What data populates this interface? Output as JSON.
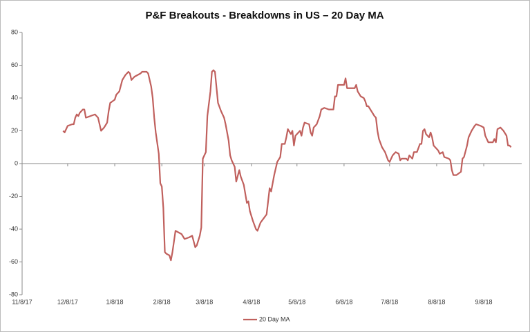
{
  "chart_data": {
    "type": "line",
    "title": "P&F Breakouts - Breakdowns in US – 20 Day MA",
    "x": [
      "2017-12-05",
      "2017-12-06",
      "2017-12-08",
      "2017-12-11",
      "2017-12-12",
      "2017-12-13",
      "2017-12-14",
      "2017-12-15",
      "2017-12-16",
      "2017-12-18",
      "2017-12-19",
      "2017-12-20",
      "2017-12-23",
      "2017-12-26",
      "2017-12-28",
      "2017-12-30",
      "2018-01-01",
      "2018-01-03",
      "2018-01-04",
      "2018-01-05",
      "2018-01-08",
      "2018-01-09",
      "2018-01-11",
      "2018-01-13",
      "2018-01-15",
      "2018-01-17",
      "2018-01-18",
      "2018-01-19",
      "2018-01-21",
      "2018-01-23",
      "2018-01-25",
      "2018-01-26",
      "2018-01-29",
      "2018-01-30",
      "2018-02-01",
      "2018-02-02",
      "2018-02-03",
      "2018-02-04",
      "2018-02-06",
      "2018-02-07",
      "2018-02-08",
      "2018-02-09",
      "2018-02-10",
      "2018-02-11",
      "2018-02-13",
      "2018-02-14",
      "2018-02-15",
      "2018-02-17",
      "2018-02-19",
      "2018-02-21",
      "2018-02-23",
      "2018-02-26",
      "2018-02-28",
      "2018-03-02",
      "2018-03-03",
      "2018-03-05",
      "2018-03-06",
      "2018-03-07",
      "2018-03-09",
      "2018-03-10",
      "2018-03-12",
      "2018-03-13",
      "2018-03-14",
      "2018-03-15",
      "2018-03-17",
      "2018-03-19",
      "2018-03-21",
      "2018-03-22",
      "2018-03-24",
      "2018-03-25",
      "2018-03-26",
      "2018-03-28",
      "2018-03-29",
      "2018-03-31",
      "2018-04-01",
      "2018-04-03",
      "2018-04-05",
      "2018-04-06",
      "2018-04-07",
      "2018-04-09",
      "2018-04-11",
      "2018-04-12",
      "2018-04-14",
      "2018-04-18",
      "2018-04-20",
      "2018-04-21",
      "2018-04-23",
      "2018-04-25",
      "2018-04-27",
      "2018-04-28",
      "2018-04-30",
      "2018-05-01",
      "2018-05-02",
      "2018-05-04",
      "2018-05-05",
      "2018-05-06",
      "2018-05-07",
      "2018-05-08",
      "2018-05-10",
      "2018-05-11",
      "2018-05-12",
      "2018-05-13",
      "2018-05-16",
      "2018-05-17",
      "2018-05-18",
      "2018-05-19",
      "2018-05-21",
      "2018-05-23",
      "2018-05-24",
      "2018-05-26",
      "2018-05-29",
      "2018-06-01",
      "2018-06-02",
      "2018-06-03",
      "2018-06-04",
      "2018-06-06",
      "2018-06-08",
      "2018-06-09",
      "2018-06-10",
      "2018-06-13",
      "2018-06-15",
      "2018-06-16",
      "2018-06-17",
      "2018-06-19",
      "2018-06-21",
      "2018-06-22",
      "2018-06-23",
      "2018-06-24",
      "2018-06-26",
      "2018-06-28",
      "2018-06-29",
      "2018-06-30",
      "2018-07-01",
      "2018-07-03",
      "2018-07-05",
      "2018-07-07",
      "2018-07-08",
      "2018-07-09",
      "2018-07-10",
      "2018-07-12",
      "2018-07-14",
      "2018-07-15",
      "2018-07-16",
      "2018-07-19",
      "2018-07-20",
      "2018-07-21",
      "2018-07-23",
      "2018-07-24",
      "2018-07-26",
      "2018-07-28",
      "2018-07-29",
      "2018-07-30",
      "2018-07-31",
      "2018-08-01",
      "2018-08-03",
      "2018-08-04",
      "2018-08-05",
      "2018-08-06",
      "2018-08-08",
      "2018-08-09",
      "2018-08-10",
      "2018-08-12",
      "2018-08-13",
      "2018-08-16",
      "2018-08-17",
      "2018-08-18",
      "2018-08-19",
      "2018-08-21",
      "2018-08-24",
      "2018-08-25",
      "2018-08-26",
      "2018-08-28",
      "2018-08-29",
      "2018-08-31",
      "2018-09-02",
      "2018-09-03",
      "2018-09-06",
      "2018-09-08",
      "2018-09-09",
      "2018-09-11",
      "2018-09-14",
      "2018-09-15",
      "2018-09-16",
      "2018-09-17",
      "2018-09-19",
      "2018-09-21",
      "2018-09-23",
      "2018-09-24",
      "2018-09-25",
      "2018-09-26"
    ],
    "series": [
      {
        "name": "20 Day MA",
        "color": "#c0605d",
        "values": [
          20,
          19,
          23,
          24,
          24,
          28,
          30,
          29,
          31,
          33,
          33,
          28,
          29,
          30,
          28,
          20,
          22,
          25,
          32,
          37,
          39,
          42,
          44,
          51,
          54,
          56,
          55,
          51,
          53,
          54,
          55,
          56,
          56,
          55,
          47,
          40,
          28,
          19,
          6,
          -12,
          -14,
          -27,
          -54,
          -55,
          -56,
          -59,
          -54,
          -41,
          -42,
          -43,
          -46,
          -45,
          -44,
          -51,
          -50,
          -44,
          -39,
          3,
          7,
          29,
          44,
          56,
          57,
          56,
          37,
          32,
          28,
          24,
          14,
          5,
          2,
          -2,
          -11,
          -4,
          -8,
          -13,
          -24,
          -23,
          -29,
          -35,
          -40,
          -41,
          -36,
          -31,
          -15,
          -17,
          -7,
          1,
          4,
          12,
          12,
          16,
          21,
          18,
          20,
          11,
          17,
          18,
          20,
          17,
          22,
          25,
          24,
          19,
          17,
          22,
          24,
          29,
          33,
          34,
          33,
          33,
          41,
          41,
          48,
          48,
          48,
          52,
          46,
          46,
          46,
          48,
          44,
          41,
          40,
          38,
          35,
          35,
          32,
          29,
          28,
          20,
          15,
          10,
          7,
          2,
          1,
          3,
          5,
          7,
          6,
          2,
          3,
          3,
          2,
          5,
          3,
          7,
          7,
          12,
          12,
          20,
          21,
          18,
          16,
          19,
          16,
          11,
          9,
          8,
          6,
          7,
          4,
          3,
          2,
          -4,
          -7,
          -7,
          -5,
          3,
          4,
          11,
          16,
          20,
          23,
          24,
          23,
          22,
          17,
          13,
          13,
          15,
          13,
          21,
          22,
          20,
          17,
          11,
          11,
          10
        ]
      }
    ],
    "xlim": [
      "2017-11-08",
      "2018-10-03"
    ],
    "xticks": [
      {
        "value": "2017-11-08",
        "label": "11/8/17"
      },
      {
        "value": "2017-12-08",
        "label": "12/8/17"
      },
      {
        "value": "2018-01-08",
        "label": "1/8/18"
      },
      {
        "value": "2018-02-08",
        "label": "2/8/18"
      },
      {
        "value": "2018-03-08",
        "label": "3/8/18"
      },
      {
        "value": "2018-04-08",
        "label": "4/8/18"
      },
      {
        "value": "2018-05-08",
        "label": "5/8/18"
      },
      {
        "value": "2018-06-08",
        "label": "6/8/18"
      },
      {
        "value": "2018-07-08",
        "label": "7/8/18"
      },
      {
        "value": "2018-08-08",
        "label": "8/8/18"
      },
      {
        "value": "2018-09-08",
        "label": "9/8/18"
      }
    ],
    "ylim": [
      -80,
      80
    ],
    "yticks": [
      -80,
      -60,
      -40,
      -20,
      0,
      20,
      40,
      60,
      80
    ],
    "grid": false,
    "legend": "bottom"
  }
}
